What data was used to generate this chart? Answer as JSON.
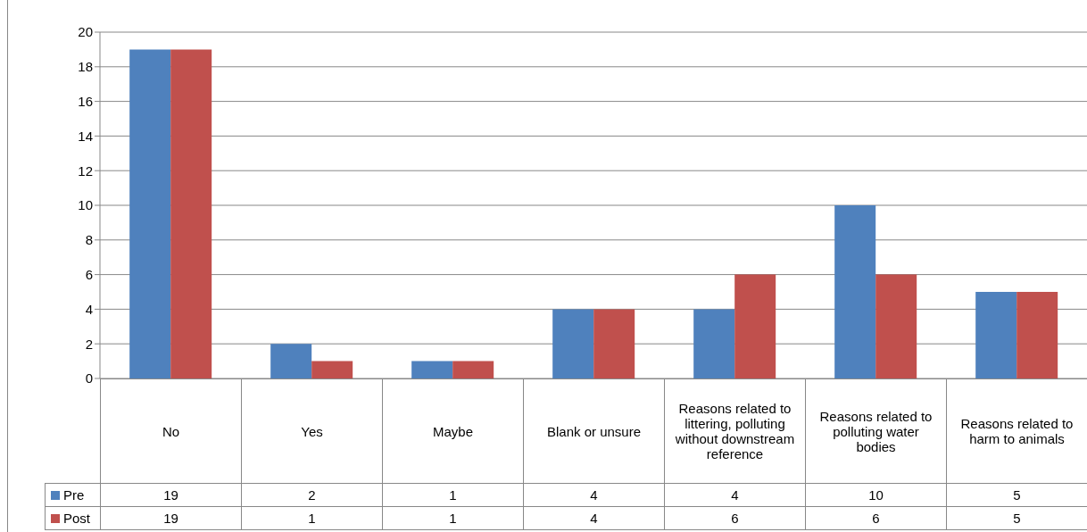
{
  "chart_data": {
    "type": "bar",
    "categories": [
      "No",
      "Yes",
      "Maybe",
      "Blank or unsure",
      "Reasons related to  littering, polluting without downstream reference",
      "Reasons related to polluting water bodies",
      "Reasons related to harm to animals"
    ],
    "series": [
      {
        "name": "Pre",
        "color": "#4f81bd",
        "values": [
          19,
          2,
          1,
          4,
          4,
          10,
          5
        ]
      },
      {
        "name": "Post",
        "color": "#c0504d",
        "values": [
          19,
          1,
          1,
          4,
          6,
          6,
          5
        ]
      }
    ],
    "ylim": [
      0,
      20
    ],
    "yticks": [
      0,
      2,
      4,
      6,
      8,
      10,
      12,
      14,
      16,
      18,
      20
    ],
    "grid": "y",
    "legend": "bottom left",
    "data_labels": true
  }
}
